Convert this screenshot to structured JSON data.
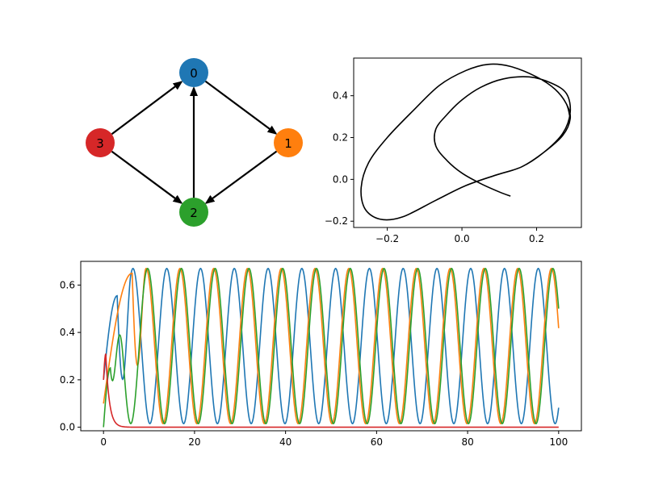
{
  "chart_data": [
    {
      "type": "network",
      "title": "",
      "nodes": [
        {
          "id": "0",
          "color": "#1f77b4"
        },
        {
          "id": "1",
          "color": "#ff7f0e"
        },
        {
          "id": "2",
          "color": "#2ca02c"
        },
        {
          "id": "3",
          "color": "#d62728"
        }
      ],
      "edges": [
        {
          "from": "0",
          "to": "1"
        },
        {
          "from": "1",
          "to": "2"
        },
        {
          "from": "2",
          "to": "0"
        },
        {
          "from": "3",
          "to": "0"
        },
        {
          "from": "3",
          "to": "2"
        }
      ],
      "directed": true
    },
    {
      "type": "line",
      "title": "",
      "xlabel": "",
      "ylabel": "",
      "xlim": [
        -0.29,
        0.32
      ],
      "ylim": [
        -0.23,
        0.58
      ],
      "xticks": [
        -0.2,
        0.0,
        0.2
      ],
      "yticks": [
        -0.2,
        0.0,
        0.2,
        0.4
      ],
      "xtick_labels": [
        "−0.2",
        "0.0",
        "0.2"
      ],
      "ytick_labels": [
        "−0.2",
        "0.0",
        "0.2",
        "0.4"
      ],
      "series": [
        {
          "color": "#000000",
          "description_free": true,
          "points": [
            [
              0.13,
              -0.08
            ],
            [
              0.1,
              -0.06
            ],
            [
              0.05,
              -0.02
            ],
            [
              0.0,
              0.03
            ],
            [
              -0.04,
              0.09
            ],
            [
              -0.07,
              0.16
            ],
            [
              -0.07,
              0.24
            ],
            [
              -0.04,
              0.31
            ],
            [
              0.0,
              0.38
            ],
            [
              0.05,
              0.44
            ],
            [
              0.11,
              0.48
            ],
            [
              0.18,
              0.49
            ],
            [
              0.24,
              0.46
            ],
            [
              0.28,
              0.41
            ],
            [
              0.29,
              0.32
            ],
            [
              0.27,
              0.22
            ],
            [
              0.22,
              0.13
            ],
            [
              0.16,
              0.06
            ],
            [
              0.09,
              0.02
            ],
            [
              0.01,
              -0.03
            ],
            [
              -0.07,
              -0.1
            ],
            [
              -0.16,
              -0.18
            ],
            [
              -0.22,
              -0.19
            ],
            [
              -0.26,
              -0.14
            ],
            [
              -0.27,
              -0.04
            ],
            [
              -0.25,
              0.08
            ],
            [
              -0.2,
              0.2
            ],
            [
              -0.13,
              0.33
            ],
            [
              -0.06,
              0.45
            ],
            [
              0.01,
              0.52
            ],
            [
              0.07,
              0.55
            ],
            [
              0.13,
              0.54
            ],
            [
              0.2,
              0.49
            ],
            [
              0.25,
              0.43
            ],
            [
              0.28,
              0.36
            ],
            [
              0.29,
              0.29
            ],
            [
              0.27,
              0.21
            ],
            [
              0.22,
              0.13
            ],
            [
              0.16,
              0.06
            ],
            [
              0.09,
              0.02
            ],
            [
              0.01,
              -0.03
            ],
            [
              -0.07,
              -0.1
            ],
            [
              -0.16,
              -0.18
            ],
            [
              -0.22,
              -0.19
            ],
            [
              -0.26,
              -0.14
            ],
            [
              -0.27,
              -0.04
            ],
            [
              -0.25,
              0.08
            ],
            [
              -0.2,
              0.2
            ],
            [
              -0.13,
              0.33
            ],
            [
              -0.06,
              0.45
            ],
            [
              0.01,
              0.52
            ],
            [
              0.07,
              0.55
            ],
            [
              0.13,
              0.54
            ],
            [
              0.2,
              0.49
            ],
            [
              0.25,
              0.43
            ],
            [
              0.28,
              0.36
            ],
            [
              0.29,
              0.29
            ]
          ]
        }
      ],
      "grid": false
    },
    {
      "type": "line",
      "title": "",
      "xlabel": "",
      "ylabel": "",
      "xlim": [
        -5,
        105
      ],
      "ylim": [
        -0.015,
        0.7
      ],
      "xticks": [
        0,
        20,
        40,
        60,
        80,
        100
      ],
      "yticks": [
        0.0,
        0.2,
        0.4,
        0.6
      ],
      "xtick_labels": [
        "0",
        "20",
        "40",
        "60",
        "80",
        "100"
      ],
      "ytick_labels": [
        "0.0",
        "0.2",
        "0.4",
        "0.6"
      ],
      "period": 7.42,
      "series": [
        {
          "color": "#1f77b4",
          "start": 0.2,
          "first_peak": [
            3.0,
            0.555
          ],
          "low": 0.015,
          "high": 0.67,
          "phase_peak": 13.9
        },
        {
          "color": "#ff7f0e",
          "start": 0.1,
          "first_peak": [
            6.3,
            0.65
          ],
          "low": 0.015,
          "high": 0.67,
          "phase_peak": 16.8
        },
        {
          "color": "#2ca02c",
          "start": 0.0,
          "first_peak": [
            1.5,
            0.25
          ],
          "low": 0.015,
          "high": 0.67,
          "phase_peak": 9.7
        },
        {
          "color": "#d62728",
          "start": 0.2,
          "first_peak": [
            0.5,
            0.31
          ],
          "decay_to": 0.0,
          "decay_rate": 1.3
        }
      ],
      "grid": false
    }
  ]
}
